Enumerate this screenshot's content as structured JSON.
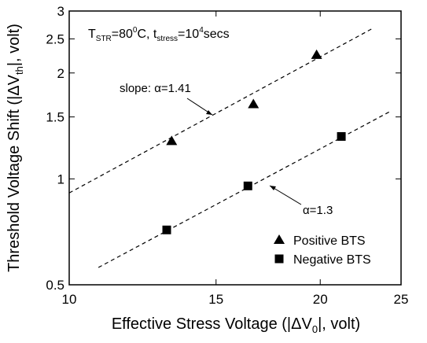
{
  "chart_data": {
    "type": "scatter",
    "xlabel": [
      "Effective Stress Voltage (|ΔV",
      "0",
      "|, volt)"
    ],
    "ylabel": [
      "Threshold Voltage Shift (|ΔV",
      "th",
      "|, volt)"
    ],
    "condition": [
      "T",
      "STR",
      "=80",
      "0",
      "C, t",
      "stress",
      "=10",
      "4",
      "secs"
    ],
    "annotations": [
      "slope: α=1.41",
      "α=1.3"
    ],
    "xlim": [
      10,
      25
    ],
    "xticks": [
      10,
      15,
      20,
      25
    ],
    "ylim": [
      0.5,
      3
    ],
    "yticks": [
      0.5,
      1,
      1.5,
      2,
      2.5,
      3
    ],
    "xscale": "log",
    "yscale": "log",
    "legend": "lower right",
    "series": [
      {
        "name": "Positive BTS",
        "marker": "triangle",
        "color": "#000000",
        "x": [
          13.27,
          16.63,
          19.8
        ],
        "values": [
          1.28,
          1.63,
          2.25
        ],
        "fit": {
          "x": [
            10,
            23.2
          ],
          "values": [
            0.912,
            2.69
          ]
        }
      },
      {
        "name": "Negative BTS",
        "marker": "square",
        "color": "#000000",
        "x": [
          13.09,
          16.38,
          21.2
        ],
        "values": [
          0.716,
          0.955,
          1.32
        ],
        "fit": {
          "x": [
            10.84,
            24.2
          ],
          "values": [
            0.56,
            1.55
          ]
        }
      }
    ]
  }
}
